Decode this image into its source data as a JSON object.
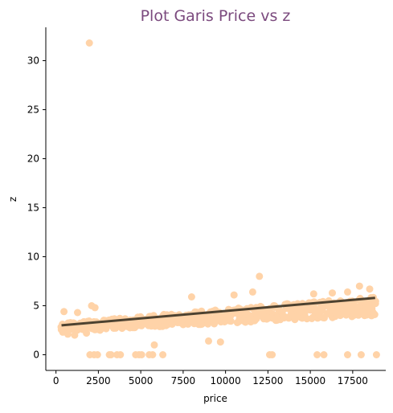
{
  "chart_data": {
    "type": "scatter",
    "title": "Plot Garis Price vs z",
    "xlabel": "price",
    "ylabel": "z",
    "xlim": [
      -600,
      19450
    ],
    "ylim": [
      -1.6,
      33.4
    ],
    "xticks": [
      0,
      2500,
      5000,
      7500,
      10000,
      12500,
      15000,
      17500
    ],
    "yticks": [
      0,
      5,
      10,
      15,
      20,
      25,
      30
    ],
    "grid": false,
    "legend": "none",
    "point_color": "#ffd3a8",
    "line_color": "#4d4230",
    "title_color": "#7b4a7e",
    "regression_line": {
      "x": [
        326,
        18823
      ],
      "y": [
        3.0,
        5.8
      ]
    },
    "points": [
      [
        1970,
        31.8
      ],
      [
        12000,
        8.0
      ],
      [
        11600,
        6.4
      ],
      [
        17200,
        6.4
      ],
      [
        17900,
        7.0
      ],
      [
        18500,
        6.7
      ],
      [
        8000,
        5.9
      ],
      [
        10500,
        6.1
      ],
      [
        15200,
        6.2
      ],
      [
        16300,
        6.3
      ],
      [
        470,
        4.4
      ],
      [
        1270,
        4.3
      ],
      [
        2100,
        5.0
      ],
      [
        2300,
        4.8
      ],
      [
        5800,
        1.0
      ],
      [
        9000,
        1.4
      ],
      [
        9700,
        1.3
      ],
      [
        2000,
        0
      ],
      [
        2250,
        0
      ],
      [
        2450,
        0
      ],
      [
        3150,
        0
      ],
      [
        3250,
        0
      ],
      [
        3600,
        0
      ],
      [
        3800,
        0
      ],
      [
        4700,
        0
      ],
      [
        4900,
        0
      ],
      [
        5050,
        0
      ],
      [
        5500,
        0
      ],
      [
        5700,
        0
      ],
      [
        6300,
        0
      ],
      [
        12600,
        0
      ],
      [
        12750,
        0
      ],
      [
        15400,
        0
      ],
      [
        15800,
        0
      ],
      [
        17200,
        0
      ],
      [
        18000,
        0
      ],
      [
        18900,
        0
      ],
      [
        400,
        2.3
      ],
      [
        700,
        2.1
      ],
      [
        1100,
        2.0
      ],
      [
        1800,
        2.2
      ],
      [
        2600,
        2.5
      ],
      [
        3400,
        2.7
      ],
      [
        4200,
        2.9
      ],
      [
        18800,
        4.1
      ],
      [
        18700,
        5.2
      ],
      [
        18200,
        4.0
      ]
    ],
    "band": {
      "x": [
        300,
        18850
      ],
      "center": [
        2.85,
        5.0
      ],
      "lower": [
        2.35,
        4.0
      ],
      "upper": [
        3.2,
        6.0
      ]
    }
  }
}
